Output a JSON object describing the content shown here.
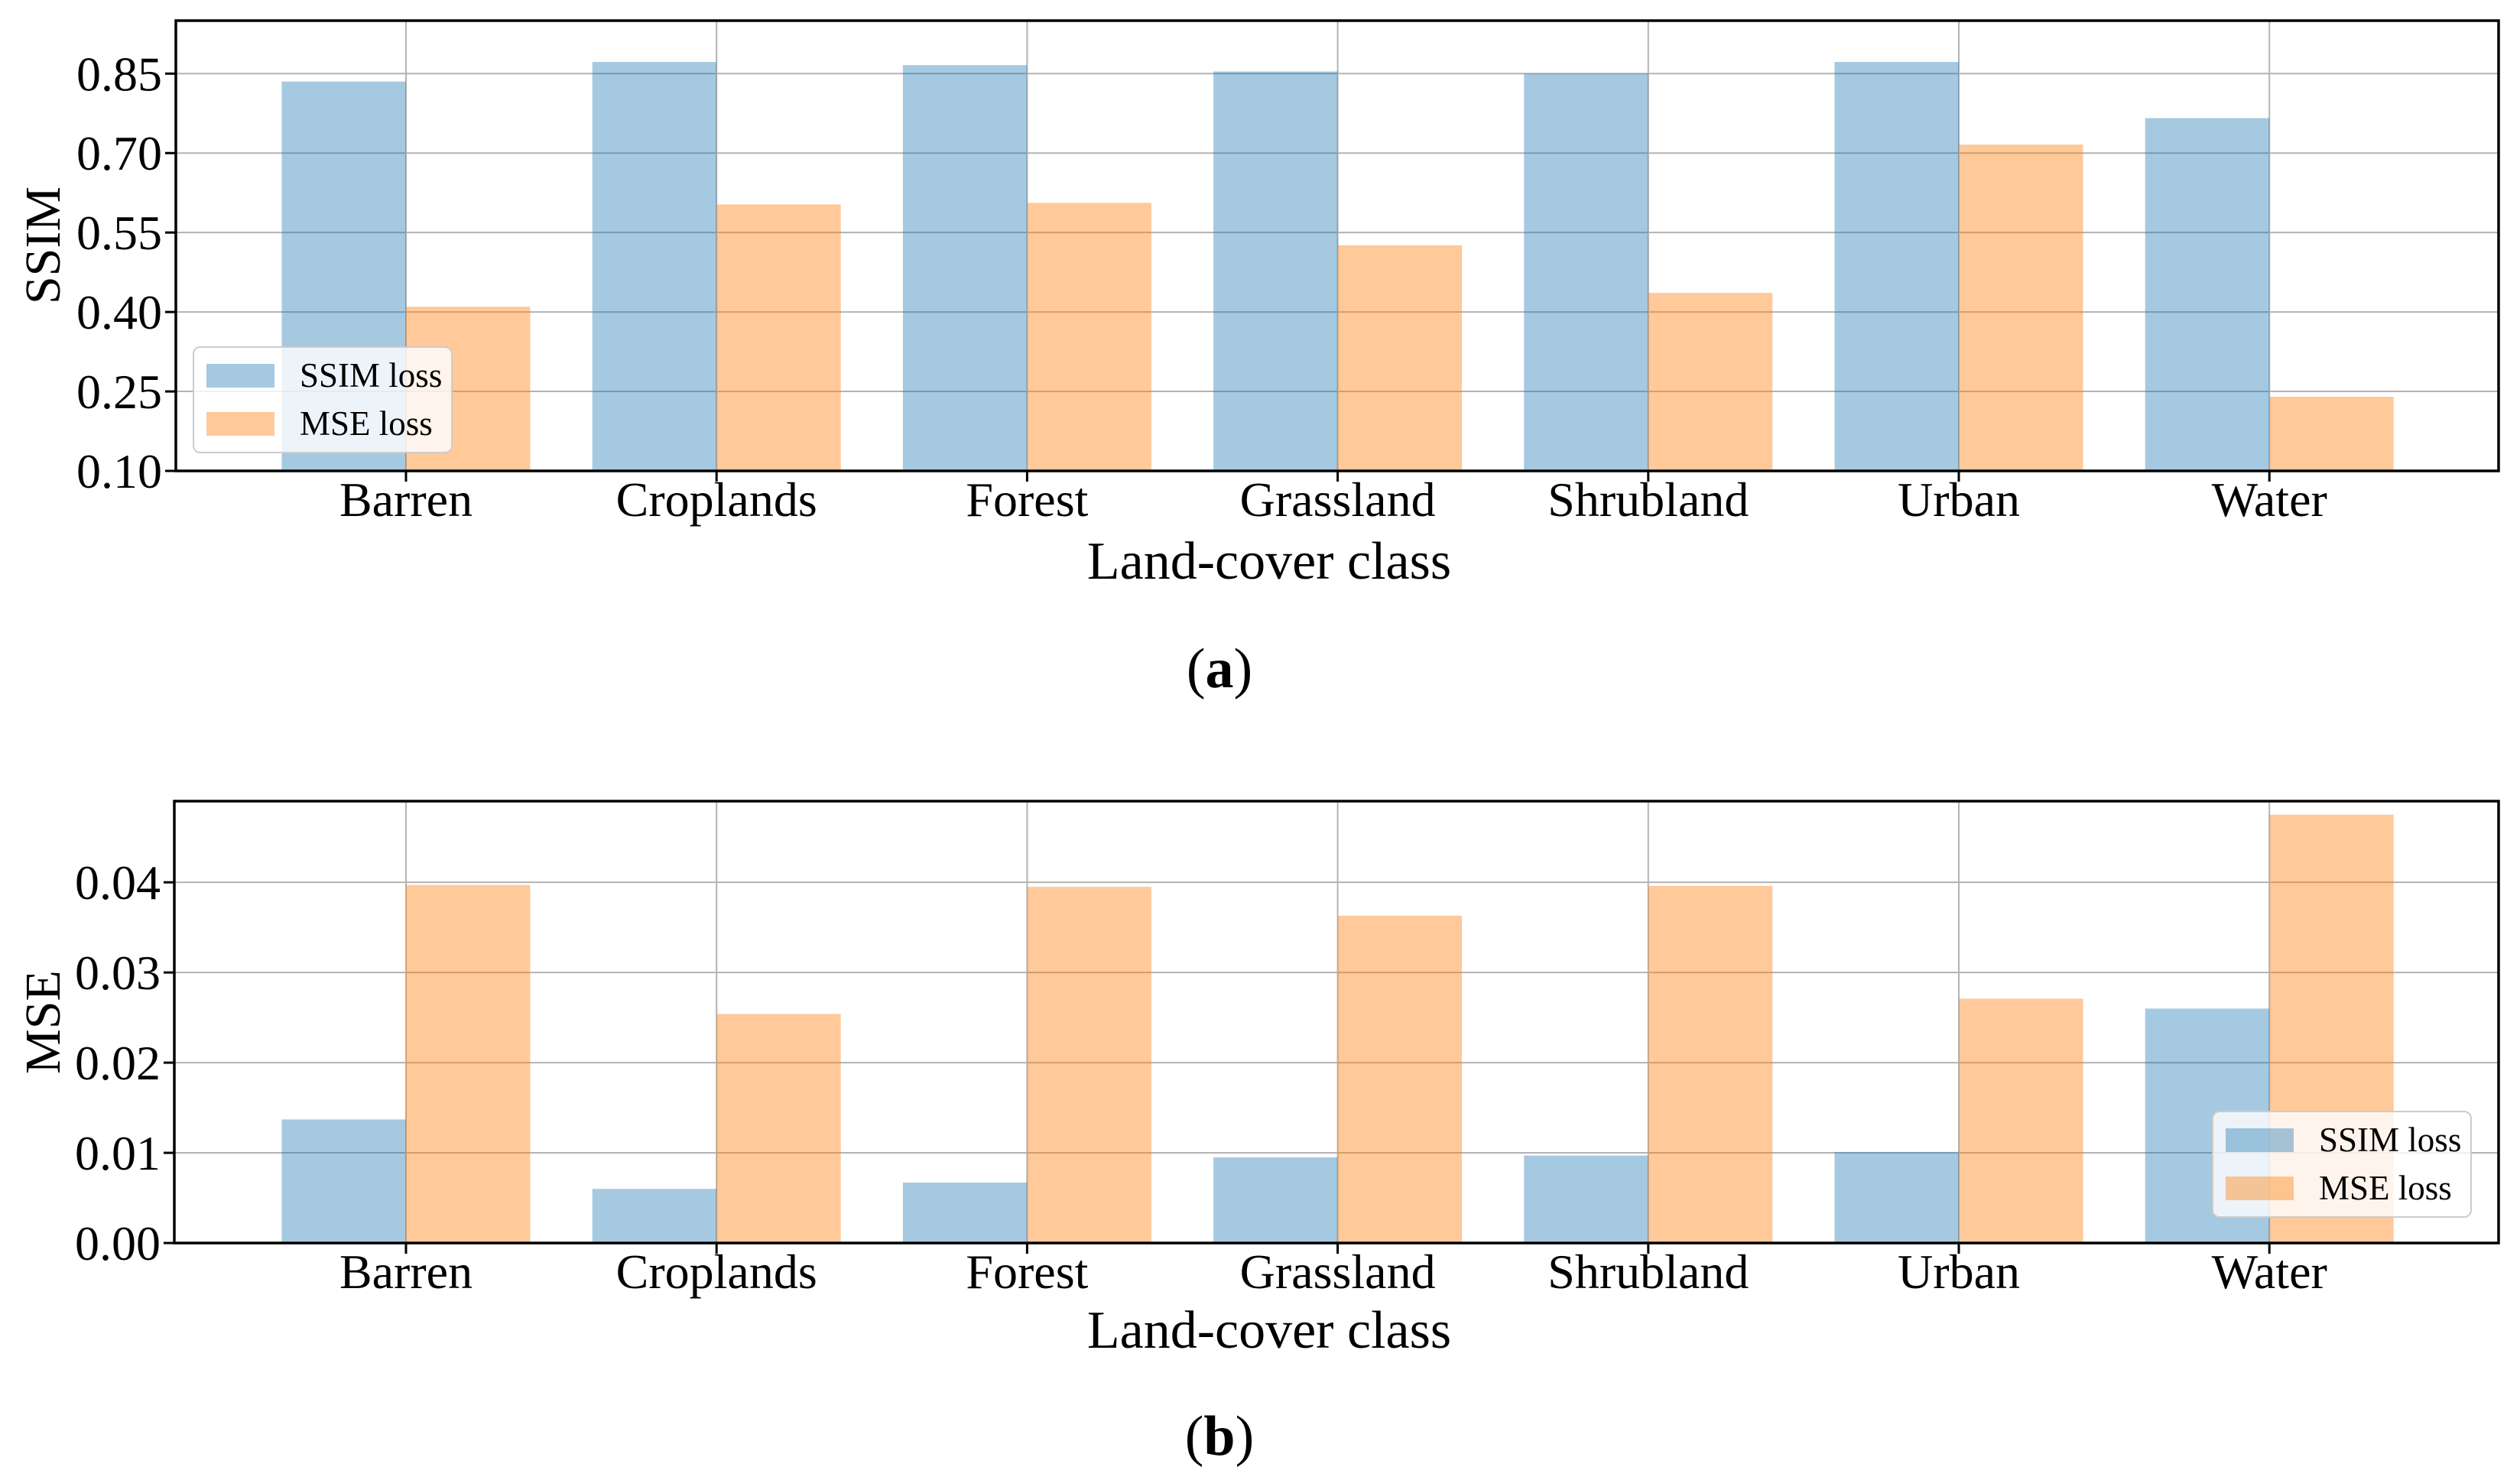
{
  "figure": {
    "background": "#ffffff"
  },
  "colors": {
    "ssim_loss_fill": "rgba(31,119,180,0.4)",
    "mse_loss_fill": "rgba(255,127,14,0.42)",
    "ssim_loss_base": "#1f77b4",
    "mse_loss_base": "#ff7f0e",
    "grid": "#b3b3b3",
    "axis": "#000000",
    "legend_border": "#cccccc"
  },
  "chart_data": [
    {
      "id": "a",
      "type": "bar",
      "caption": {
        "open": "(",
        "letter": "a",
        "close": ")"
      },
      "xlabel": "Land-cover class",
      "ylabel": "SSIM",
      "categories": [
        "Barren",
        "Croplands",
        "Forest",
        "Grassland",
        "Shrubland",
        "Urban",
        "Water"
      ],
      "series": [
        {
          "name": "SSIM loss",
          "values": [
            0.835,
            0.872,
            0.866,
            0.854,
            0.85,
            0.872,
            0.766
          ]
        },
        {
          "name": "MSE loss",
          "values": [
            0.41,
            0.603,
            0.606,
            0.526,
            0.436,
            0.716,
            0.24
          ]
        }
      ],
      "ylim": [
        0.1,
        0.95
      ],
      "yticks": [
        0.1,
        0.25,
        0.4,
        0.55,
        0.7,
        0.85
      ],
      "ytick_labels": [
        "0.10",
        "0.25",
        "0.40",
        "0.55",
        "0.70",
        "0.85"
      ],
      "grid": true,
      "legend_position": "lower-left"
    },
    {
      "id": "b",
      "type": "bar",
      "caption": {
        "open": "(",
        "letter": "b",
        "close": ")"
      },
      "xlabel": "Land-cover class",
      "ylabel": "MSE",
      "categories": [
        "Barren",
        "Croplands",
        "Forest",
        "Grassland",
        "Shrubland",
        "Urban",
        "Water"
      ],
      "series": [
        {
          "name": "SSIM loss",
          "values": [
            0.0137,
            0.006,
            0.0067,
            0.0095,
            0.0097,
            0.0101,
            0.026
          ]
        },
        {
          "name": "MSE loss",
          "values": [
            0.0397,
            0.0254,
            0.0395,
            0.0363,
            0.0396,
            0.0271,
            0.0475
          ]
        }
      ],
      "ylim": [
        0.0,
        0.049
      ],
      "yticks": [
        0.0,
        0.01,
        0.02,
        0.03,
        0.04
      ],
      "ytick_labels": [
        "0.00",
        "0.01",
        "0.02",
        "0.03",
        "0.04"
      ],
      "grid": true,
      "legend_position": "lower-right"
    }
  ]
}
